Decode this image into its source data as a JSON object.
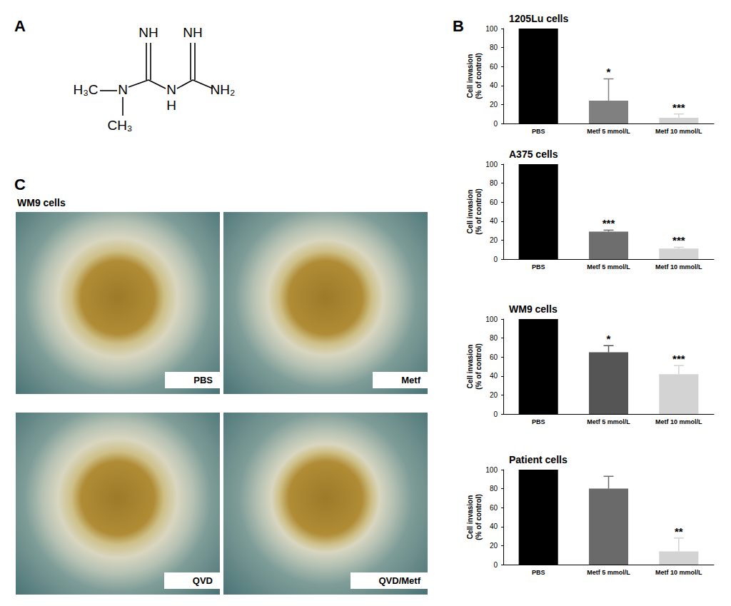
{
  "panel_labels": [
    "A",
    "B",
    "C"
  ],
  "structure": {
    "atoms": [
      "H₃C",
      "N",
      "CH₃",
      "NH",
      "N",
      "H",
      "NH",
      "NH₂"
    ]
  },
  "micrographs": {
    "title": "WM9 cells",
    "labels": [
      "PBS",
      "Metf",
      "QVD",
      "QVD/Metf"
    ]
  },
  "chart_data": [
    {
      "type": "bar",
      "title": "1205Lu cells",
      "categories": [
        "PBS",
        "Metf 5 mmol/L",
        "Metf 10 mmol/L"
      ],
      "values": [
        100,
        24,
        6
      ],
      "errors": [
        0,
        23,
        4
      ],
      "significance": [
        null,
        "*",
        "***"
      ],
      "colors": [
        "#000000",
        "#808080",
        "#d3d3d3"
      ],
      "y_label": "Cell invasion\n(% of control)",
      "ylim": [
        0,
        100
      ],
      "yticks": [
        0,
        20,
        40,
        60,
        80,
        100
      ],
      "grid": false
    },
    {
      "type": "bar",
      "title": "A375 cells",
      "categories": [
        "PBS",
        "Metf 5 mmol/L",
        "Metf 10 mmol/L"
      ],
      "values": [
        100,
        29,
        11
      ],
      "errors": [
        0,
        1.5,
        1.5
      ],
      "significance": [
        null,
        "***",
        "***"
      ],
      "colors": [
        "#000000",
        "#6e6e6e",
        "#d3d3d3"
      ],
      "y_label": "Cell invasion\n(% of control)",
      "ylim": [
        0,
        100
      ],
      "yticks": [
        0,
        20,
        40,
        60,
        80,
        100
      ],
      "grid": false
    },
    {
      "type": "bar",
      "title": "WM9 cells",
      "categories": [
        "PBS",
        "Metf 5 mmol/L",
        "Metf 10 mmol/L"
      ],
      "values": [
        100,
        65,
        42
      ],
      "errors": [
        0,
        7,
        9
      ],
      "significance": [
        null,
        "*",
        "***"
      ],
      "colors": [
        "#000000",
        "#555555",
        "#d3d3d3"
      ],
      "y_label": "Cell invasion\n(% of control)",
      "ylim": [
        0,
        100
      ],
      "yticks": [
        0,
        20,
        40,
        60,
        80,
        100
      ],
      "grid": false
    },
    {
      "type": "bar",
      "title": "Patient cells",
      "categories": [
        "PBS",
        "Metf 5 mmol/L",
        "Metf 10 mmol/L"
      ],
      "values": [
        100,
        80,
        14
      ],
      "errors": [
        0,
        13,
        14
      ],
      "significance": [
        null,
        null,
        "**"
      ],
      "colors": [
        "#000000",
        "#6a6a6a",
        "#d3d3d3"
      ],
      "y_label": "Cell invasion\n(% of control)",
      "ylim": [
        0,
        100
      ],
      "yticks": [
        0,
        20,
        40,
        60,
        80,
        100
      ],
      "grid": false
    }
  ]
}
